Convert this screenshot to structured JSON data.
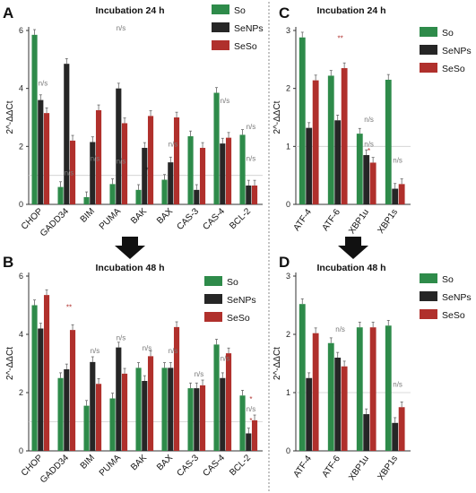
{
  "colors": {
    "So": "#2e8b4a",
    "SeNPs": "#262626",
    "SeSo": "#b0302c",
    "sig_red": "#b0302c",
    "ns": "#7a7a7a"
  },
  "chart_data": [
    {
      "panel": "A",
      "type": "bar",
      "title": "Incubation 24 h",
      "ylabel": "2^-ΔΔCt",
      "ylim": [
        0,
        6
      ],
      "yticks": [
        0,
        2,
        4,
        6
      ],
      "categories": [
        "CHOP",
        "GADD34",
        "BIM",
        "PUMA",
        "BAK",
        "BAX",
        "CAS-3",
        "CAS-4",
        "BCL-2"
      ],
      "series": [
        {
          "name": "So",
          "values": [
            5.85,
            0.6,
            0.25,
            0.7,
            0.5,
            0.85,
            2.35,
            3.85,
            2.4
          ]
        },
        {
          "name": "SeNPs",
          "values": [
            3.6,
            4.85,
            2.15,
            4.0,
            1.95,
            1.45,
            0.5,
            2.1,
            0.65
          ]
        },
        {
          "name": "SeSo",
          "values": [
            3.15,
            2.2,
            3.25,
            2.8,
            3.05,
            3.0,
            1.95,
            2.3,
            0.65
          ]
        }
      ],
      "annotations": [
        {
          "text": "n/s",
          "category": "CHOP",
          "y": 4.1
        },
        {
          "text": "n/s",
          "category": "GADD34",
          "y": 1.0
        },
        {
          "text": "n/s",
          "category": "BIM",
          "y": 1.5
        },
        {
          "text": "n/s",
          "category": "PUMA",
          "y": 1.4
        },
        {
          "text": "n/s",
          "category": "PUMA",
          "y": 6.0
        },
        {
          "text": "*",
          "category": "BAK",
          "y": 1.1
        },
        {
          "text": "n/s",
          "category": "BAX",
          "y": 2.0
        },
        {
          "text": "n/s",
          "category": "CAS-4",
          "y": 3.5
        },
        {
          "text": "n/s",
          "category": "BCL-2",
          "y": 2.6
        },
        {
          "text": "n/s",
          "category": "BCL-2",
          "y": 1.5
        }
      ],
      "legend_position": "top-right"
    },
    {
      "panel": "B",
      "type": "bar",
      "title": "Incubation 48 h",
      "ylabel": "2^-ΔΔCt",
      "ylim": [
        0,
        6
      ],
      "yticks": [
        0,
        2,
        4,
        6
      ],
      "categories": [
        "CHOP",
        "GADD34",
        "BIM",
        "PUMA",
        "BAK",
        "BAX",
        "CAS-3",
        "CAS-4",
        "BCL-2"
      ],
      "series": [
        {
          "name": "So",
          "values": [
            5.0,
            2.5,
            1.55,
            1.8,
            2.85,
            2.85,
            2.15,
            3.65,
            1.9
          ]
        },
        {
          "name": "SeNPs",
          "values": [
            4.2,
            2.8,
            3.05,
            3.55,
            2.4,
            2.85,
            2.15,
            2.5,
            0.6
          ]
        },
        {
          "name": "SeSo",
          "values": [
            5.35,
            4.15,
            2.3,
            2.65,
            3.25,
            4.25,
            2.25,
            3.35,
            1.05
          ]
        }
      ],
      "annotations": [
        {
          "text": "**",
          "category": "GADD34",
          "y": 4.85
        },
        {
          "text": "n/s",
          "category": "BIM",
          "y": 3.35
        },
        {
          "text": "n/s",
          "category": "PUMA",
          "y": 3.8
        },
        {
          "text": "n/s",
          "category": "BAK",
          "y": 3.45
        },
        {
          "text": "n/s",
          "category": "BAX",
          "y": 3.35
        },
        {
          "text": "n/s",
          "category": "CAS-3",
          "y": 2.55
        },
        {
          "text": "n/s",
          "category": "CAS-4",
          "y": 3.1
        },
        {
          "text": "*",
          "category": "BCL-2",
          "y": 1.7
        },
        {
          "text": "n/s",
          "category": "BCL-2",
          "y": 1.35
        },
        {
          "text": "*",
          "category": "BCL-2",
          "y": 0.95
        }
      ],
      "legend_position": "top-right"
    },
    {
      "panel": "C",
      "type": "bar",
      "title": "Incubation 24 h",
      "ylabel": "2^-ΔΔCt",
      "ylim": [
        0,
        3
      ],
      "yticks": [
        0,
        1,
        2,
        3
      ],
      "categories": [
        "ATF-4",
        "ATF-6",
        "XBP1u",
        "XBP1s"
      ],
      "series": [
        {
          "name": "So",
          "values": [
            2.88,
            2.22,
            1.22,
            2.15
          ]
        },
        {
          "name": "SeNPs",
          "values": [
            1.32,
            1.45,
            0.85,
            0.27
          ]
        },
        {
          "name": "SeSo",
          "values": [
            2.14,
            2.35,
            0.72,
            0.35
          ]
        }
      ],
      "annotations": [
        {
          "text": "**",
          "category": "ATF-6",
          "y": 2.82
        },
        {
          "text": "n/s",
          "category": "XBP1u",
          "y": 1.42
        },
        {
          "text": "n/s",
          "category": "XBP1u",
          "y": 1.0
        },
        {
          "text": "*",
          "category": "XBP1u",
          "y": 0.88
        },
        {
          "text": "n/s",
          "category": "XBP1s",
          "y": 0.72
        }
      ],
      "legend_position": "top-right"
    },
    {
      "panel": "D",
      "type": "bar",
      "title": "Incubation 48 h",
      "ylabel": "2^-ΔΔCt",
      "ylim": [
        0,
        3
      ],
      "yticks": [
        0,
        1,
        2,
        3
      ],
      "categories": [
        "ATF-4",
        "ATF-6",
        "XBP1u",
        "XBP1s"
      ],
      "series": [
        {
          "name": "So",
          "values": [
            2.52,
            1.85,
            2.12,
            2.15
          ]
        },
        {
          "name": "SeNPs",
          "values": [
            1.25,
            1.6,
            0.63,
            0.48
          ]
        },
        {
          "name": "SeSo",
          "values": [
            2.02,
            1.45,
            2.12,
            0.75
          ]
        }
      ],
      "annotations": [
        {
          "text": "n/s",
          "category": "ATF-6",
          "y": 2.05
        },
        {
          "text": "n/s",
          "category": "XBP1s",
          "y": 1.1
        }
      ],
      "legend_position": "top-right"
    }
  ]
}
